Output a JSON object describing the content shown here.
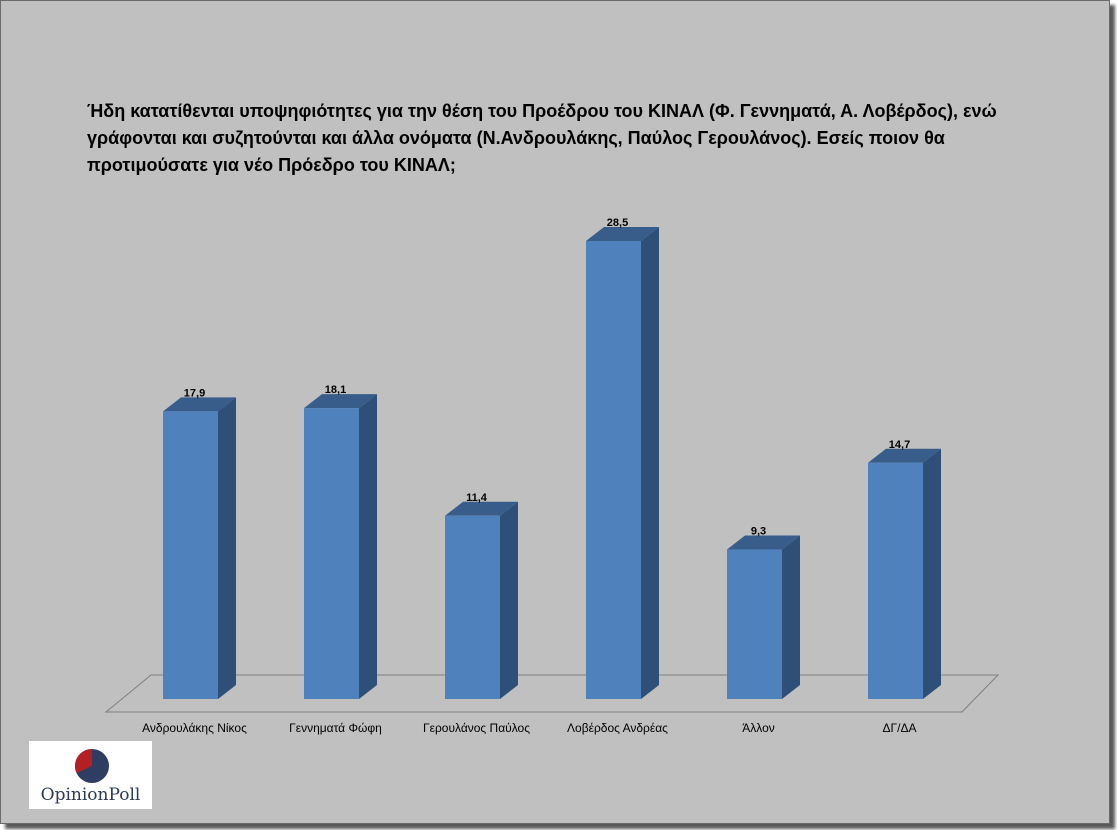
{
  "chart_data": {
    "type": "bar",
    "title": "Ήδη κατατίθενται υποψηφιότητες για την θέση του Προέδρου του ΚΙΝΑΛ (Φ. Γεννηματά, Α. Λοβέρδος), ενώ γράφονται και συζητούνται και άλλα ονόματα (Ν.Ανδρουλάκης, Παύλος Γερουλάνος). Εσείς ποιον θα προτιμούσατε για νέο Πρόεδρο του ΚΙΝΑΛ;",
    "categories": [
      "Ανδρουλάκης Νίκος",
      "Γεννηματά Φώφη",
      "Γερουλάνος Παύλος",
      "Λοβέρδος Ανδρέας",
      "Άλλον",
      "ΔΓ/ΔΑ"
    ],
    "values": [
      17.9,
      18.1,
      11.4,
      28.5,
      9.3,
      14.7
    ],
    "value_labels": [
      "17,9",
      "18,1",
      "11,4",
      "28,5",
      "9,3",
      "14,7"
    ],
    "ylim": [
      0,
      30
    ],
    "grid": false,
    "style": "3d-column",
    "colors": {
      "front": "#4f81bd",
      "side": "#2d4f78",
      "top": "#385d8a",
      "floor": "#c0c0c0"
    }
  },
  "logo": {
    "text": "OpinionPoll",
    "colors": {
      "red": "#b22026",
      "navy": "#2f3d63"
    }
  }
}
